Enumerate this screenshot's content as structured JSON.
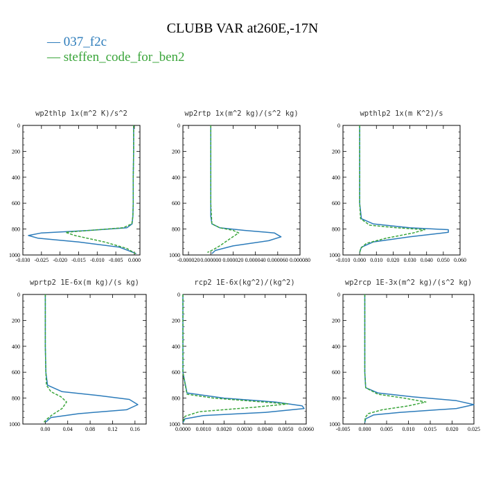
{
  "title": "CLUBB VAR at260E,-17N",
  "legend": [
    {
      "label": "037_f2c",
      "color": "#2b7bba"
    },
    {
      "label": "steffen_code_for_ben2",
      "color": "#3aa53a"
    }
  ],
  "colors": {
    "series_1": "#2b7bba",
    "series_2": "#3aa53a",
    "axis": "#000000"
  },
  "chart_data": [
    {
      "type": "line",
      "title": "wp2thlp  1x(m^2 K)/s^2",
      "xlim": [
        -0.03,
        0.0015
      ],
      "ylim": [
        1000,
        0
      ],
      "xticks": [
        -0.03,
        -0.025,
        -0.02,
        -0.015,
        -0.01,
        -0.005,
        0.0
      ],
      "xtick_labels": [
        "-0.030",
        "-0.025",
        "-0.020",
        "-0.015",
        "-0.010",
        "-0.005",
        "0.000"
      ],
      "yticks": [
        0,
        200,
        400,
        600,
        800,
        1000
      ],
      "ytick_labels": [
        "0",
        "200",
        "400",
        "600",
        "800",
        "1000"
      ],
      "series": [
        {
          "name": "037_f2c",
          "style": "solid",
          "x": [
            -0.0002,
            -0.0002,
            -0.0003,
            -0.0003,
            -0.0004,
            -0.0006,
            -0.002,
            -0.012,
            -0.025,
            -0.0285,
            -0.026,
            -0.015,
            -0.004,
            0.0005
          ],
          "y": [
            0,
            200,
            400,
            600,
            700,
            760,
            790,
            810,
            830,
            850,
            870,
            900,
            940,
            990
          ]
        },
        {
          "name": "steffen_code_for_ben2",
          "style": "dashed",
          "x": [
            -0.0002,
            -0.0002,
            -0.0003,
            -0.0003,
            -0.0004,
            -0.0007,
            -0.003,
            -0.012,
            -0.0185,
            -0.016,
            -0.008,
            -0.002,
            0.0003
          ],
          "y": [
            0,
            200,
            400,
            600,
            700,
            760,
            790,
            810,
            825,
            850,
            900,
            950,
            990
          ]
        }
      ]
    },
    {
      "type": "line",
      "title": "wp2rtp  1x(m^2 kg)/(s^2 kg)",
      "xlim": [
        -2.5e-05,
        8e-05
      ],
      "ylim": [
        1000,
        0
      ],
      "xticks": [
        -2e-05,
        0.0,
        2e-05,
        4e-05,
        6e-05,
        8e-05
      ],
      "xtick_labels": [
        "-0.000020",
        "0.000000",
        "0.000020",
        "0.000040",
        "0.000060",
        "0.000080"
      ],
      "yticks": [
        0,
        200,
        400,
        600,
        800,
        1000
      ],
      "ytick_labels": [
        "0",
        "200",
        "400",
        "600",
        "800",
        "1000"
      ],
      "series": [
        {
          "name": "037_f2c",
          "style": "solid",
          "x": [
            0.0,
            0.0,
            0.0,
            0.0,
            0.0,
            1e-06,
            8e-06,
            3e-05,
            5.7e-05,
            6.3e-05,
            5.2e-05,
            2e-05,
            4e-06,
            1e-06
          ],
          "y": [
            0,
            200,
            400,
            600,
            700,
            760,
            790,
            810,
            830,
            860,
            890,
            930,
            965,
            990
          ]
        },
        {
          "name": "steffen_code_for_ben2",
          "style": "dashed",
          "x": [
            0.0,
            0.0,
            0.0,
            0.0,
            1e-06,
            8e-06,
            2e-05,
            2.5e-05,
            1.8e-05,
            8e-06,
            2e-06,
            -3e-06
          ],
          "y": [
            0,
            200,
            400,
            600,
            760,
            790,
            810,
            830,
            870,
            930,
            960,
            980
          ]
        }
      ]
    },
    {
      "type": "line",
      "title": "wpthlp2  1x(m K^2)/s",
      "xlim": [
        -0.01,
        0.06
      ],
      "ylim": [
        1000,
        0
      ],
      "xticks": [
        -0.01,
        0.0,
        0.01,
        0.02,
        0.03,
        0.04,
        0.05,
        0.06
      ],
      "xtick_labels": [
        "-0.010",
        "0.000",
        "0.010",
        "0.020",
        "0.030",
        "0.040",
        "0.050",
        "0.060"
      ],
      "yticks": [
        0,
        200,
        400,
        600,
        800,
        1000
      ],
      "ytick_labels": [
        "0",
        "200",
        "400",
        "600",
        "800",
        "1000"
      ],
      "series": [
        {
          "name": "037_f2c",
          "style": "solid",
          "x": [
            0.0,
            0.0,
            0.0,
            0.0,
            0.001,
            0.008,
            0.03,
            0.053,
            0.053,
            0.03,
            0.008,
            0.001,
            0.0
          ],
          "y": [
            0,
            200,
            400,
            600,
            720,
            760,
            790,
            805,
            825,
            860,
            900,
            940,
            980
          ]
        },
        {
          "name": "steffen_code_for_ben2",
          "style": "dashed",
          "x": [
            0.0,
            0.0,
            0.0,
            0.0,
            0.0005,
            0.006,
            0.022,
            0.039,
            0.032,
            0.016,
            0.004,
            0.0005,
            0.0
          ],
          "y": [
            0,
            200,
            400,
            600,
            720,
            770,
            790,
            805,
            830,
            870,
            910,
            950,
            990
          ]
        }
      ]
    },
    {
      "type": "line",
      "title": "wprtp2  1E-6x(m kg)/(s kg)",
      "xlim": [
        -0.04,
        0.18
      ],
      "ylim": [
        1000,
        0
      ],
      "xticks": [
        0.0,
        0.04,
        0.08,
        0.12,
        0.16
      ],
      "xtick_labels": [
        "0.00",
        "0.04",
        "0.08",
        "0.12",
        "0.16"
      ],
      "yticks": [
        0,
        200,
        400,
        600,
        800,
        1000
      ],
      "ytick_labels": [
        "0",
        "200",
        "400",
        "600",
        "800",
        "1000"
      ],
      "series": [
        {
          "name": "037_f2c",
          "style": "solid",
          "x": [
            0.0,
            0.0,
            0.0,
            0.001,
            0.004,
            0.03,
            0.095,
            0.15,
            0.165,
            0.145,
            0.06,
            0.01,
            0.001
          ],
          "y": [
            0,
            200,
            400,
            600,
            700,
            750,
            780,
            810,
            850,
            890,
            920,
            950,
            985
          ]
        },
        {
          "name": "steffen_code_for_ben2",
          "style": "dashed",
          "x": [
            0.0,
            0.0,
            0.0,
            0.001,
            0.002,
            0.01,
            0.028,
            0.038,
            0.03,
            0.012,
            0.002,
            -0.003
          ],
          "y": [
            0,
            200,
            400,
            600,
            700,
            750,
            790,
            830,
            880,
            930,
            965,
            990
          ]
        }
      ]
    },
    {
      "type": "line",
      "title": "rcp2  1E-6x(kg^2)/(kg^2)",
      "xlim": [
        0.0,
        0.006
      ],
      "ylim": [
        1000,
        0
      ],
      "xticks": [
        0.0,
        0.001,
        0.002,
        0.003,
        0.004,
        0.005,
        0.006
      ],
      "xtick_labels": [
        "0.0000",
        "0.0010",
        "0.0020",
        "0.0030",
        "0.0040",
        "0.0050",
        "0.0060"
      ],
      "yticks": [
        0,
        200,
        400,
        600,
        800,
        1000
      ],
      "ytick_labels": [
        "0",
        "200",
        "400",
        "600",
        "800",
        "1000"
      ],
      "series": [
        {
          "name": "037_f2c",
          "style": "solid",
          "x": [
            0.0,
            0.0,
            0.0,
            0.0,
            0.0002,
            0.002,
            0.0045,
            0.0058,
            0.0059,
            0.004,
            0.001,
            0.0001,
            0.0
          ],
          "y": [
            0,
            200,
            400,
            600,
            760,
            800,
            830,
            860,
            880,
            910,
            935,
            960,
            990
          ]
        },
        {
          "name": "steffen_code_for_ben2",
          "style": "dashed",
          "x": [
            0.0,
            0.0,
            0.0,
            0.0,
            0.0002,
            0.0015,
            0.0035,
            0.0051,
            0.0035,
            0.0008,
            0.0001,
            0.0
          ],
          "y": [
            0,
            200,
            400,
            600,
            770,
            800,
            825,
            845,
            870,
            905,
            940,
            990
          ]
        }
      ]
    },
    {
      "type": "line",
      "title": "wp2rcp  1E-3x(m^2 kg)/(s^2 kg)",
      "xlim": [
        -0.005,
        0.025
      ],
      "ylim": [
        1000,
        0
      ],
      "xticks": [
        -0.005,
        0.0,
        0.005,
        0.01,
        0.015,
        0.02,
        0.025
      ],
      "xtick_labels": [
        "-0.005",
        "0.000",
        "0.005",
        "0.010",
        "0.015",
        "0.020",
        "0.025"
      ],
      "yticks": [
        0,
        200,
        400,
        600,
        800,
        1000
      ],
      "ytick_labels": [
        "0",
        "200",
        "400",
        "600",
        "800",
        "1000"
      ],
      "series": [
        {
          "name": "037_f2c",
          "style": "solid",
          "x": [
            0.0,
            0.0,
            0.0,
            0.0,
            0.0002,
            0.003,
            0.011,
            0.021,
            0.025,
            0.021,
            0.008,
            0.002,
            0.0002,
            0.0
          ],
          "y": [
            0,
            200,
            400,
            600,
            720,
            760,
            790,
            820,
            850,
            880,
            910,
            930,
            960,
            990
          ]
        },
        {
          "name": "steffen_code_for_ben2",
          "style": "dashed",
          "x": [
            0.0,
            0.0,
            0.0,
            0.0,
            0.0002,
            0.003,
            0.009,
            0.014,
            0.01,
            0.004,
            0.0008,
            0.0001,
            0.0
          ],
          "y": [
            0,
            200,
            400,
            600,
            720,
            770,
            800,
            830,
            860,
            890,
            920,
            950,
            990
          ]
        }
      ]
    }
  ]
}
